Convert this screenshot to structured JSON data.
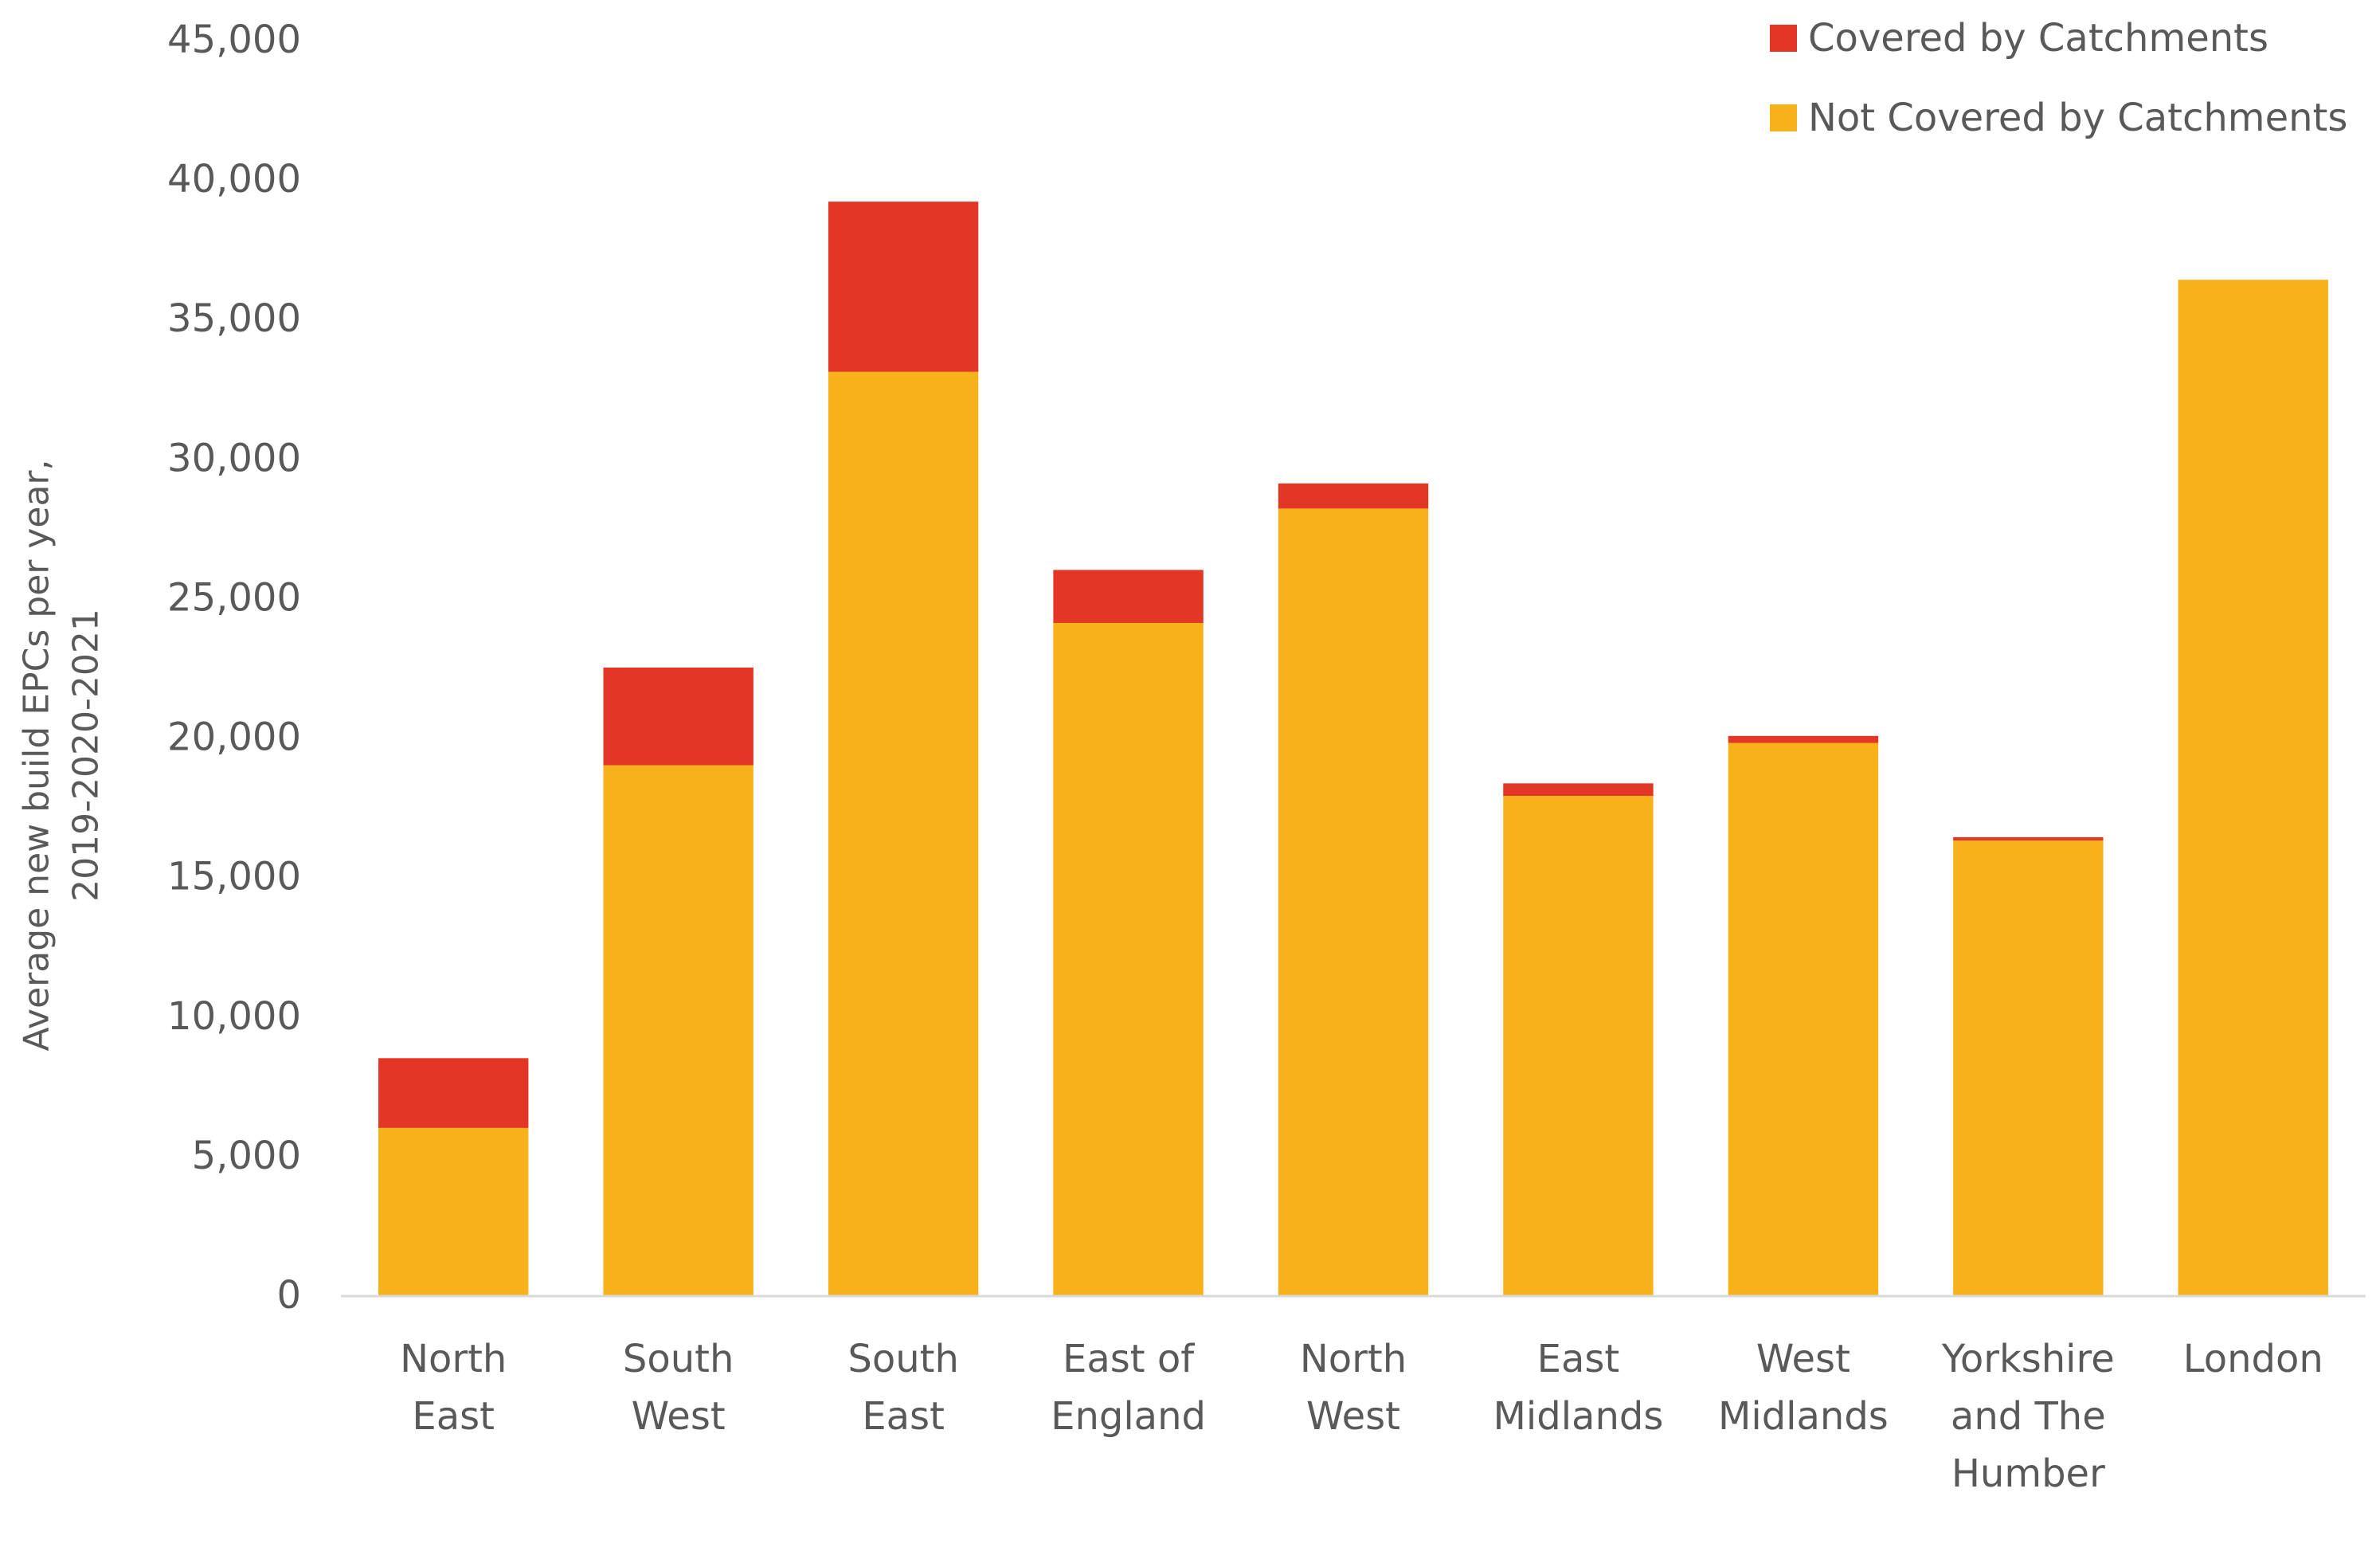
{
  "chart_data": {
    "type": "bar",
    "stacked": true,
    "categories": [
      [
        "North",
        "East"
      ],
      [
        "South",
        "West"
      ],
      [
        "South",
        "East"
      ],
      [
        "East of",
        "England"
      ],
      [
        "North",
        "West"
      ],
      [
        "East",
        "Midlands"
      ],
      [
        "West",
        "Midlands"
      ],
      [
        "Yorkshire",
        "and The",
        "Humber"
      ],
      [
        "London"
      ]
    ],
    "series": [
      {
        "name": "Not Covered by Catchments",
        "color": "#F8B219",
        "values": [
          6000,
          19000,
          33100,
          24100,
          28200,
          17900,
          19800,
          16300,
          36400
        ]
      },
      {
        "name": "Covered by Catchments",
        "color": "#E43625",
        "values": [
          2500,
          3500,
          6100,
          1900,
          900,
          450,
          250,
          120,
          0
        ]
      }
    ],
    "ylabel": [
      "Average new build EPCs per year,",
      "2019-2020-2021"
    ],
    "ylim": [
      0,
      45000
    ],
    "yticks": [
      "0",
      "5,000",
      "10,000",
      "15,000",
      "20,000",
      "25,000",
      "30,000",
      "35,000",
      "40,000",
      "45,000"
    ],
    "ytick_values": [
      0,
      5000,
      10000,
      15000,
      20000,
      25000,
      30000,
      35000,
      40000,
      45000
    ],
    "grid": false,
    "legend": {
      "placement": "top-right",
      "order": [
        "Covered by Catchments",
        "Not Covered by Catchments"
      ]
    }
  }
}
